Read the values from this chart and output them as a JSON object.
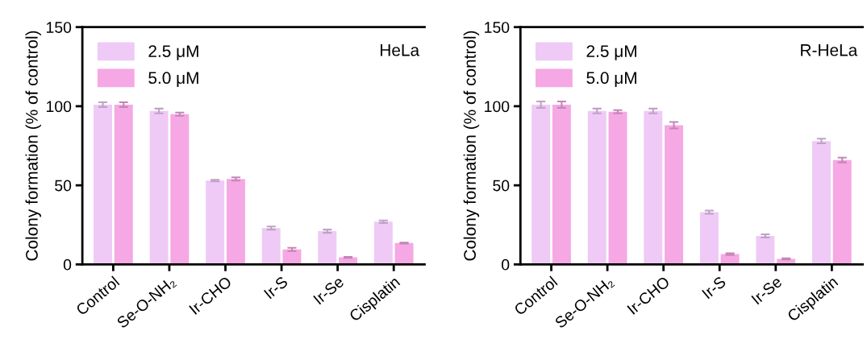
{
  "chart_data": [
    {
      "type": "bar",
      "ylabel": "Colony formation (% of control)",
      "annotations": [
        "HeLa"
      ],
      "categories": [
        "Control",
        "Se-O-NH₂",
        "Ir-CHO",
        "Ir-S",
        "Ir-Se",
        "Cisplatin"
      ],
      "ylim": [
        0,
        150
      ],
      "yticks": [
        0,
        50,
        100,
        150
      ],
      "legend": "top left",
      "grid": false,
      "series": [
        {
          "name": "2.5 μM",
          "color": "#efcaf6",
          "values": [
            101,
            97,
            53,
            23,
            21,
            27
          ],
          "errors": [
            1.5,
            1.5,
            0.5,
            1,
            1,
            0.8
          ]
        },
        {
          "name": "5.0 μM",
          "color": "#f5a8e4",
          "values": [
            101,
            95,
            54,
            9.5,
            4.5,
            13.5
          ],
          "errors": [
            1.5,
            1,
            1,
            1,
            0.3,
            0.3
          ]
        }
      ]
    },
    {
      "type": "bar",
      "ylabel": "Colony formation (% of control)",
      "annotations": [
        "R-HeLa"
      ],
      "categories": [
        "Control",
        "Se-O-NH₂",
        "Ir-CHO",
        "Ir-S",
        "Ir-Se",
        "Cisplatin"
      ],
      "ylim": [
        0,
        150
      ],
      "yticks": [
        0,
        50,
        100,
        150
      ],
      "legend": "top left",
      "grid": false,
      "series": [
        {
          "name": "2.5 μM",
          "color": "#efcaf6",
          "values": [
            101,
            97,
            97,
            33,
            18,
            78
          ],
          "errors": [
            2,
            1.5,
            1.5,
            1,
            1,
            1.5
          ]
        },
        {
          "name": "5.0 μM",
          "color": "#f5a8e4",
          "values": [
            101,
            96.5,
            88,
            6.5,
            3.5,
            66
          ],
          "errors": [
            2,
            1,
            2,
            0.5,
            0.3,
            1.5
          ]
        }
      ]
    }
  ]
}
